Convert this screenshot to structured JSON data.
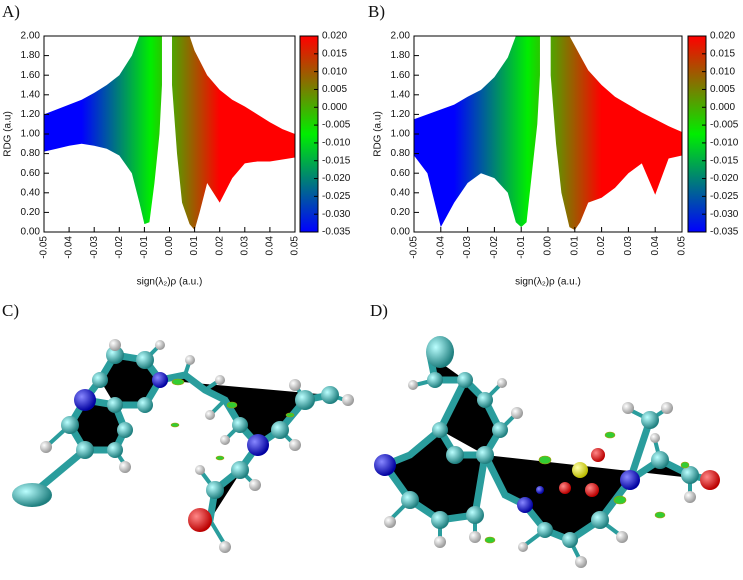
{
  "panel_labels": [
    "A)",
    "B)",
    "C)",
    "D)"
  ],
  "chart_data": [
    {
      "type": "band",
      "xlabel": "sign(λ₂)ρ (a.u.)",
      "ylabel": "RDG (a.u)",
      "x": [
        -0.05,
        -0.045,
        -0.04,
        -0.035,
        -0.03,
        -0.025,
        -0.02,
        -0.015,
        -0.012,
        -0.01,
        -0.008,
        -0.006,
        -0.004,
        -0.003,
        null,
        0.001,
        0.003,
        0.005,
        0.008,
        0.01,
        0.012,
        0.015,
        0.02,
        0.025,
        0.03,
        0.035,
        0.04,
        0.045,
        0.05
      ],
      "y_lower": [
        0.82,
        0.85,
        0.88,
        0.9,
        0.88,
        0.85,
        0.78,
        0.6,
        0.3,
        0.08,
        0.1,
        0.5,
        1.0,
        1.5,
        null,
        1.5,
        0.8,
        0.3,
        0.08,
        0.02,
        0.2,
        0.5,
        0.3,
        0.55,
        0.7,
        0.72,
        0.72,
        0.74,
        0.76
      ],
      "y_upper": [
        1.2,
        1.25,
        1.3,
        1.35,
        1.42,
        1.5,
        1.6,
        1.8,
        2.0,
        2.0,
        2.0,
        2.0,
        2.0,
        2.0,
        null,
        2.0,
        2.0,
        2.0,
        2.0,
        1.85,
        1.75,
        1.6,
        1.45,
        1.35,
        1.28,
        1.2,
        1.12,
        1.05,
        1.0
      ],
      "xlim": [
        -0.05,
        0.05
      ],
      "xticks": [
        -0.05,
        -0.04,
        -0.03,
        -0.02,
        -0.01,
        {
          "value": 0,
          "label": "0.00"
        },
        0.01,
        0.02,
        0.03,
        0.04,
        0.05
      ],
      "ylim": [
        0,
        2
      ],
      "yticks": [
        {
          "value": 0,
          "label": "0.00"
        },
        {
          "value": 0.2,
          "label": "0.20"
        },
        {
          "value": 0.4,
          "label": "0.40"
        },
        {
          "value": 0.6,
          "label": "0.60"
        },
        {
          "value": 0.8,
          "label": "0.80"
        },
        {
          "value": 1,
          "label": "1.00"
        },
        {
          "value": 1.2,
          "label": "1.20"
        },
        {
          "value": 1.4,
          "label": "1.40"
        },
        {
          "value": 1.6,
          "label": "1.60"
        },
        {
          "value": 1.8,
          "label": "1.80"
        },
        {
          "value": 2,
          "label": "2.00"
        }
      ],
      "colorbar": {
        "lim": [
          -0.035,
          0.02
        ],
        "colors": [
          "#0000ff",
          "#00ee00",
          "#ff0000"
        ],
        "ticks": [
          {
            "value": 0.02,
            "label": "0.020"
          },
          {
            "value": 0.015,
            "label": "0.015"
          },
          {
            "value": 0.01,
            "label": "0.010"
          },
          {
            "value": 0.005,
            "label": "0.005"
          },
          {
            "value": 0,
            "label": "0.000"
          },
          {
            "value": -0.005,
            "label": "-0.005"
          },
          {
            "value": -0.01,
            "label": "-0.010"
          },
          {
            "value": -0.015,
            "label": "-0.015"
          },
          {
            "value": -0.02,
            "label": "-0.020"
          },
          {
            "value": -0.025,
            "label": "-0.025"
          },
          {
            "value": -0.03,
            "label": "-0.030"
          },
          {
            "value": -0.035,
            "label": "-0.035"
          }
        ]
      }
    },
    {
      "type": "band",
      "xlabel": "sign(λ₂)ρ (a.u.)",
      "ylabel": "RDG (a.u)",
      "x": [
        -0.05,
        -0.045,
        -0.04,
        -0.035,
        -0.03,
        -0.025,
        -0.02,
        -0.015,
        -0.012,
        -0.01,
        -0.008,
        -0.006,
        -0.004,
        -0.003,
        null,
        0.001,
        0.003,
        0.005,
        0.008,
        0.01,
        0.012,
        0.015,
        0.02,
        0.025,
        0.03,
        0.035,
        0.04,
        0.045,
        0.05
      ],
      "y_lower": [
        0.78,
        0.6,
        0.05,
        0.3,
        0.5,
        0.6,
        0.55,
        0.4,
        0.1,
        0.05,
        0.1,
        0.6,
        1.1,
        1.6,
        null,
        1.6,
        0.9,
        0.4,
        0.05,
        0.02,
        0.1,
        0.3,
        0.35,
        0.45,
        0.6,
        0.7,
        0.38,
        0.75,
        0.78
      ],
      "y_upper": [
        1.15,
        1.2,
        1.25,
        1.3,
        1.38,
        1.45,
        1.58,
        1.78,
        2.0,
        2.0,
        2.0,
        2.0,
        2.0,
        2.0,
        null,
        2.0,
        2.0,
        2.0,
        2.0,
        1.9,
        1.8,
        1.65,
        1.5,
        1.38,
        1.3,
        1.22,
        1.15,
        1.08,
        1.02
      ],
      "xlim": [
        -0.05,
        0.05
      ],
      "xticks": [
        -0.05,
        -0.04,
        -0.03,
        -0.02,
        -0.01,
        {
          "value": 0,
          "label": "0.00"
        },
        0.01,
        0.02,
        0.03,
        0.04,
        0.05
      ],
      "ylim": [
        0,
        2
      ],
      "yticks": [
        {
          "value": 0,
          "label": "0.00"
        },
        {
          "value": 0.2,
          "label": "0.20"
        },
        {
          "value": 0.4,
          "label": "0.40"
        },
        {
          "value": 0.6,
          "label": "0.60"
        },
        {
          "value": 0.8,
          "label": "0.80"
        },
        {
          "value": 1,
          "label": "1.00"
        },
        {
          "value": 1.2,
          "label": "1.20"
        },
        {
          "value": 1.4,
          "label": "1.40"
        },
        {
          "value": 1.6,
          "label": "1.60"
        },
        {
          "value": 1.8,
          "label": "1.80"
        },
        {
          "value": 2,
          "label": "2.00"
        }
      ],
      "colorbar": {
        "lim": [
          -0.035,
          0.02
        ],
        "colors": [
          "#0000ff",
          "#00ee00",
          "#ff0000"
        ],
        "ticks": [
          {
            "value": 0.02,
            "label": "0.020"
          },
          {
            "value": 0.015,
            "label": "0.015"
          },
          {
            "value": 0.01,
            "label": "0.010"
          },
          {
            "value": 0.005,
            "label": "0.005"
          },
          {
            "value": 0,
            "label": "0.000"
          },
          {
            "value": -0.005,
            "label": "-0.005"
          },
          {
            "value": -0.01,
            "label": "-0.010"
          },
          {
            "value": -0.015,
            "label": "-0.015"
          },
          {
            "value": -0.02,
            "label": "-0.020"
          },
          {
            "value": -0.025,
            "label": "-0.025"
          },
          {
            "value": -0.03,
            "label": "-0.030"
          },
          {
            "value": -0.035,
            "label": "-0.035"
          }
        ]
      }
    }
  ]
}
